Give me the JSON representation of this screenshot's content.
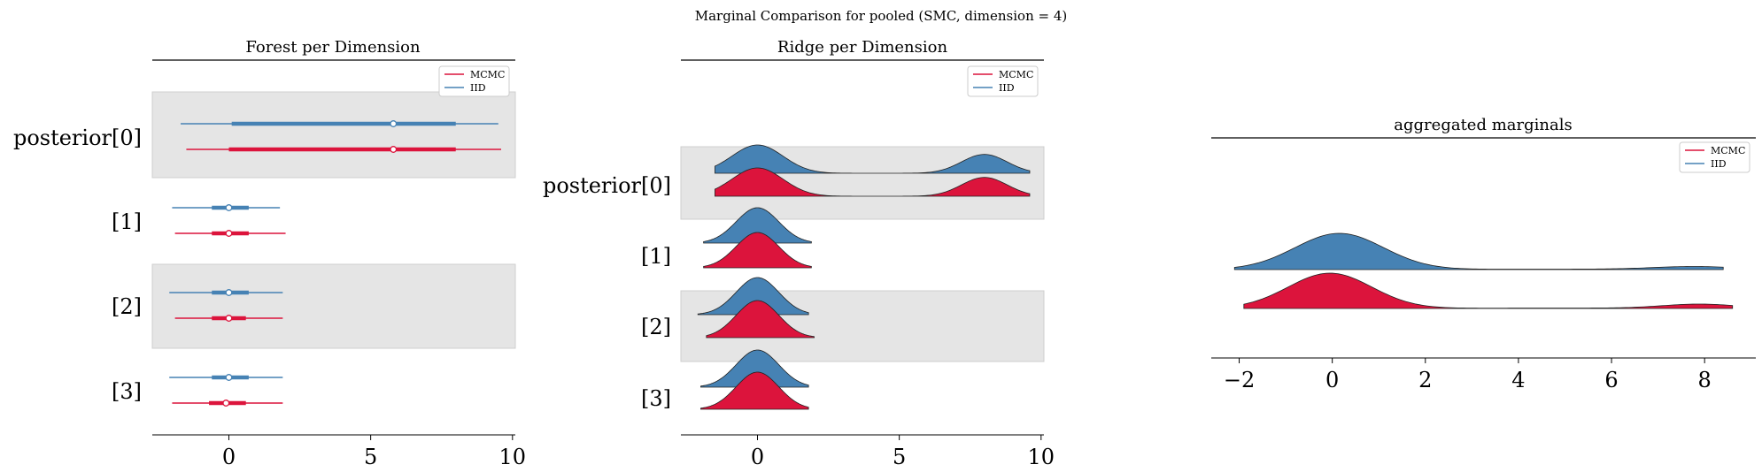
{
  "figure": {
    "suptitle": "Marginal Comparison for pooled (SMC, dimension = 4)"
  },
  "colors": {
    "mcmc": "#dc143c",
    "iid": "#4682b4",
    "band": "#e5e5e5",
    "band_edge": "#cfcfcf"
  },
  "chart_data": [
    {
      "type": "forest",
      "title": "Forest per Dimension",
      "xlim": [
        -2.7,
        10.1
      ],
      "xticks": [
        0,
        5,
        10
      ],
      "xtick_labels": [
        "0",
        "5",
        "10"
      ],
      "rows": [
        "posterior[0]",
        "[1]",
        "[2]",
        "[3]"
      ],
      "legend": {
        "placement": "upper-right",
        "entries": [
          "MCMC",
          "IID"
        ]
      },
      "series": [
        {
          "name": "MCMC",
          "color": "#dc143c",
          "stats": [
            {
              "low": -1.5,
              "q1": 0.0,
              "mean": 5.8,
              "q3": 8.0,
              "high": 9.6
            },
            {
              "low": -1.9,
              "q1": -0.6,
              "mean": 0.0,
              "q3": 0.7,
              "high": 2.0
            },
            {
              "low": -1.9,
              "q1": -0.6,
              "mean": 0.0,
              "q3": 0.6,
              "high": 1.9
            },
            {
              "low": -2.0,
              "q1": -0.7,
              "mean": -0.1,
              "q3": 0.6,
              "high": 1.9
            }
          ]
        },
        {
          "name": "IID",
          "color": "#4682b4",
          "stats": [
            {
              "low": -1.7,
              "q1": 0.1,
              "mean": 5.8,
              "q3": 8.0,
              "high": 9.5
            },
            {
              "low": -2.0,
              "q1": -0.6,
              "mean": 0.0,
              "q3": 0.7,
              "high": 1.8
            },
            {
              "low": -2.1,
              "q1": -0.6,
              "mean": 0.0,
              "q3": 0.7,
              "high": 1.9
            },
            {
              "low": -2.1,
              "q1": -0.6,
              "mean": 0.0,
              "q3": 0.7,
              "high": 1.9
            }
          ]
        }
      ]
    },
    {
      "type": "ridge",
      "title": "Ridge per Dimension",
      "xlim": [
        -2.7,
        10.1
      ],
      "xticks": [
        0,
        5,
        10
      ],
      "xtick_labels": [
        "0",
        "5",
        "10"
      ],
      "rows": [
        "posterior[0]",
        "[1]",
        "[2]",
        "[3]"
      ],
      "legend": {
        "placement": "upper-right",
        "entries": [
          "MCMC",
          "IID"
        ]
      },
      "series": [
        {
          "name": "MCMC",
          "color": "#dc143c",
          "ranges": [
            [
              -1.5,
              9.6
            ],
            [
              -1.9,
              1.9
            ],
            [
              -1.8,
              2.0
            ],
            [
              -2.0,
              1.8
            ]
          ]
        },
        {
          "name": "IID",
          "color": "#4682b4",
          "ranges": [
            [
              -1.5,
              9.6
            ],
            [
              -1.9,
              1.9
            ],
            [
              -2.1,
              1.8
            ],
            [
              -2.0,
              1.8
            ]
          ]
        }
      ]
    },
    {
      "type": "ridge",
      "title": "aggregated marginals",
      "xlim": [
        -2.6,
        9.1
      ],
      "xticks": [
        -2,
        0,
        2,
        4,
        6,
        8
      ],
      "xtick_labels": [
        "−2",
        "0",
        "2",
        "4",
        "6",
        "8"
      ],
      "legend": {
        "placement": "upper-right",
        "entries": [
          "MCMC",
          "IID"
        ]
      },
      "series": [
        {
          "name": "IID",
          "color": "#4682b4",
          "range": [
            -2.1,
            8.4
          ]
        },
        {
          "name": "MCMC",
          "color": "#dc143c",
          "range": [
            -1.9,
            8.6
          ]
        }
      ]
    }
  ]
}
